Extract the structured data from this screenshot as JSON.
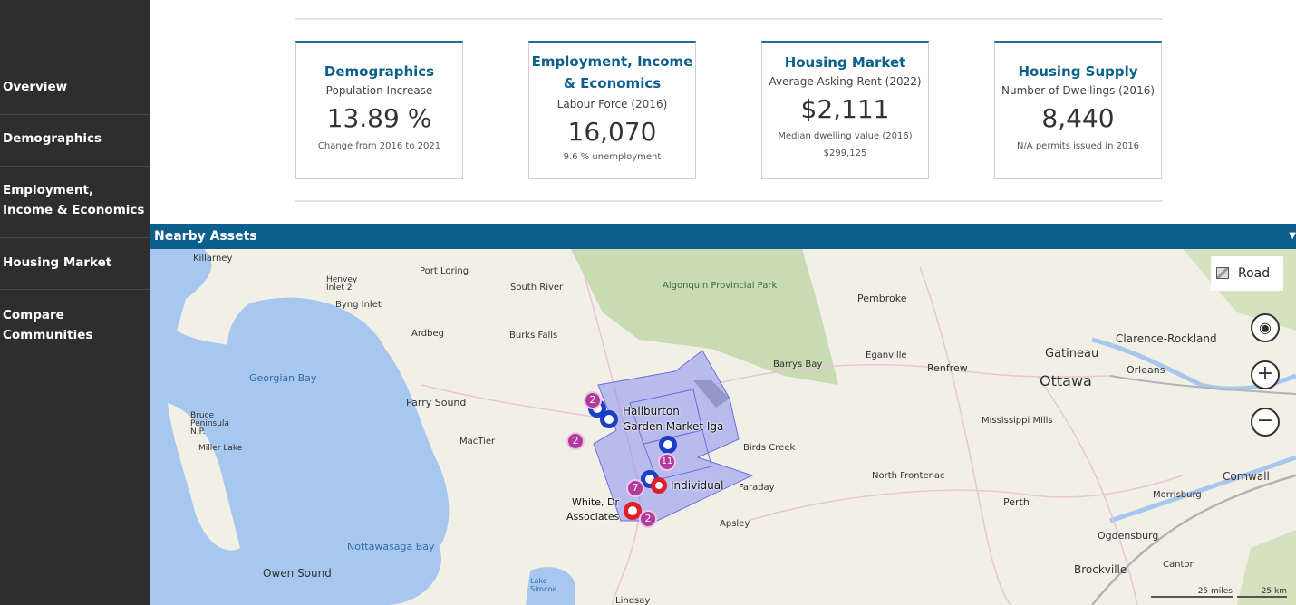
{
  "sidebar": {
    "items": [
      {
        "label": "Overview"
      },
      {
        "label": "Demographics"
      },
      {
        "label": "Employment,"
      },
      {
        "label": "Income & Economics"
      },
      {
        "label": "Housing Market"
      },
      {
        "label": "Compare"
      },
      {
        "label": "Communities"
      }
    ]
  },
  "cards": [
    {
      "title": "Demographics",
      "subtitle": "Population Increase",
      "value": "13.89 %",
      "footnote": "Change from 2016 to 2021"
    },
    {
      "title1": "Employment, Income",
      "title2": "& Economics",
      "subtitle": "Labour Force (2016)",
      "value": "16,070",
      "footnote": "9.6 % unemployment"
    },
    {
      "title": "Housing Market",
      "subtitle": "Average Asking Rent (2022)",
      "value": "$2,111",
      "footnote": "Median dwelling value (2016)",
      "footnote2": "$299,125"
    },
    {
      "title": "Housing Supply",
      "subtitle": "Number of Dwellings (2016)",
      "value": "8,440",
      "footnote": "N/A permits issued in 2016"
    }
  ],
  "map": {
    "header": "Nearby Assets",
    "road_label": "Road",
    "places": [
      "Killarney",
      "Port Loring",
      "Henvey Inlet 2",
      "Byng Inlet",
      "South River",
      "Algonquin Provincial Park",
      "Pembroke",
      "Ardbeg",
      "Burks Falls",
      "Georgian Bay",
      "Barrys Bay",
      "Eganville",
      "Renfrew",
      "Gatineau",
      "Clarence-Rockland",
      "Ottawa",
      "Orleans",
      "Parry Sound",
      "Haliburton",
      "Garden Market Iga",
      "Bruce Peninsula N.P.",
      "Miller Lake",
      "MacTier",
      "Birds Creek",
      "Mississippi Mills",
      "Individual",
      "Faraday",
      "North Frontenac",
      "Cornwall",
      "White, Dr",
      "Associates",
      "Apsley",
      "Perth",
      "Morrisburg",
      "Nottawasaga Bay",
      "Ogdensburg",
      "Owen Sound",
      "Lake Simcoe",
      "Brockville",
      "Canton",
      "Lindsay"
    ],
    "clusters": [
      "2",
      "2",
      "11",
      "7",
      "2"
    ],
    "scale_miles": "25 miles",
    "scale_km": "25 km",
    "colors": {
      "water": "#a8c7ef",
      "park": "#c9dbb3",
      "region": "#8a8ff0",
      "header": "#0c5f8d"
    }
  }
}
